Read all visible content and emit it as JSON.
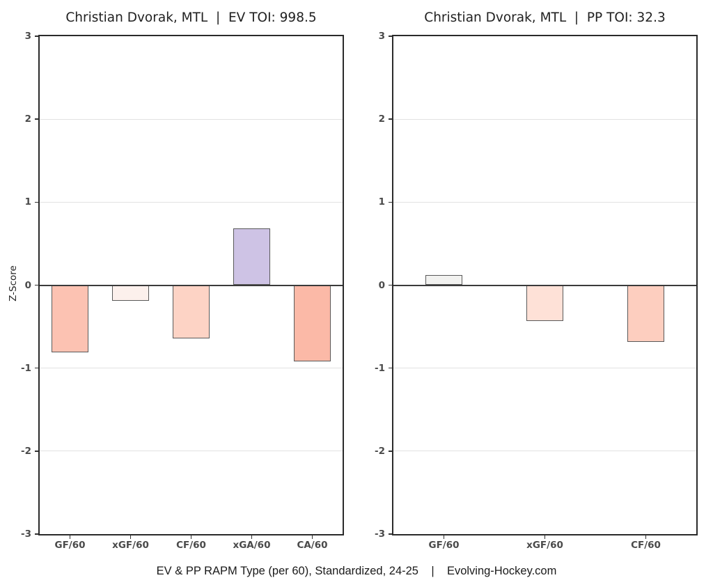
{
  "page": {
    "caption": "EV & PP RAPM Type (per 60), Standardized, 24-25    |    Evolving-Hockey.com"
  },
  "axis": {
    "ylabel": "Z-Score",
    "ylim": [
      -3,
      3
    ],
    "yticks": [
      3,
      2,
      1,
      0,
      -1,
      -2,
      -3
    ]
  },
  "colors": {
    "bar_border": "#595959",
    "zero_line": "#3a3a3a",
    "grid_line": "#e2e2e2",
    "plot_border": "#2a2a2a",
    "tick_label": "#4a4a4a",
    "title": "#212121",
    "positive_accent": "#cec3e5",
    "negative_accent": "#fbb9a7"
  },
  "chart_data": [
    {
      "type": "bar",
      "title": "Christian Dvorak, MTL  |  EV TOI: 998.5",
      "categories": [
        "GF/60",
        "xGF/60",
        "CF/60",
        "xGA/60",
        "CA/60"
      ],
      "values": [
        -0.81,
        -0.19,
        -0.64,
        0.68,
        -0.92
      ],
      "bar_colors": [
        "#fcc2b2",
        "#fcf0ec",
        "#fdd3c5",
        "#cec3e5",
        "#fbb9a7"
      ],
      "xlabel": "",
      "ylabel": "Z-Score",
      "ylim": [
        -3,
        3
      ],
      "grid": true,
      "legend": "none"
    },
    {
      "type": "bar",
      "title": "Christian Dvorak, MTL  |  PP TOI: 32.3",
      "categories": [
        "GF/60",
        "xGF/60",
        "CF/60"
      ],
      "values": [
        0.12,
        -0.43,
        -0.68
      ],
      "bar_colors": [
        "#f2f2f0",
        "#fee1d7",
        "#fdcebf"
      ],
      "xlabel": "",
      "ylabel": "",
      "ylim": [
        -3,
        3
      ],
      "grid": true,
      "legend": "none"
    }
  ]
}
